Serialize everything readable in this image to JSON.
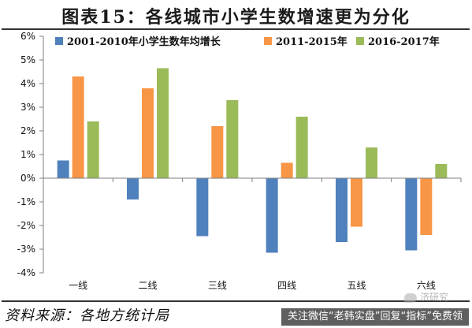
{
  "title": "图表15：各线城市小学生数增速更为分化",
  "source": "资料来源：各地方统计局",
  "banner": "关注微信“老韩实盘”回复“指标”免费领",
  "watermark": "济研究",
  "chart_data": {
    "type": "bar",
    "categories": [
      "一线",
      "二线",
      "三线",
      "四线",
      "五线",
      "六线"
    ],
    "series": [
      {
        "name": "2001-2010年小学生数年均增长",
        "color": "#4f81bd",
        "values": [
          0.75,
          -0.9,
          -2.45,
          -3.15,
          -2.7,
          -3.05
        ]
      },
      {
        "name": "2011-2015年",
        "color": "#f79646",
        "values": [
          4.3,
          3.8,
          2.2,
          0.65,
          -2.05,
          -2.4
        ]
      },
      {
        "name": "2016-2017年",
        "color": "#9bbb59",
        "values": [
          2.4,
          4.65,
          3.3,
          2.6,
          1.3,
          0.6
        ]
      }
    ],
    "yticks": [
      "6%",
      "5%",
      "4%",
      "3%",
      "2%",
      "1%",
      "0%",
      "-1%",
      "-2%",
      "-3%",
      "-4%"
    ],
    "ylim": [
      -4,
      6
    ],
    "legend_position": "top",
    "grid": false
  }
}
